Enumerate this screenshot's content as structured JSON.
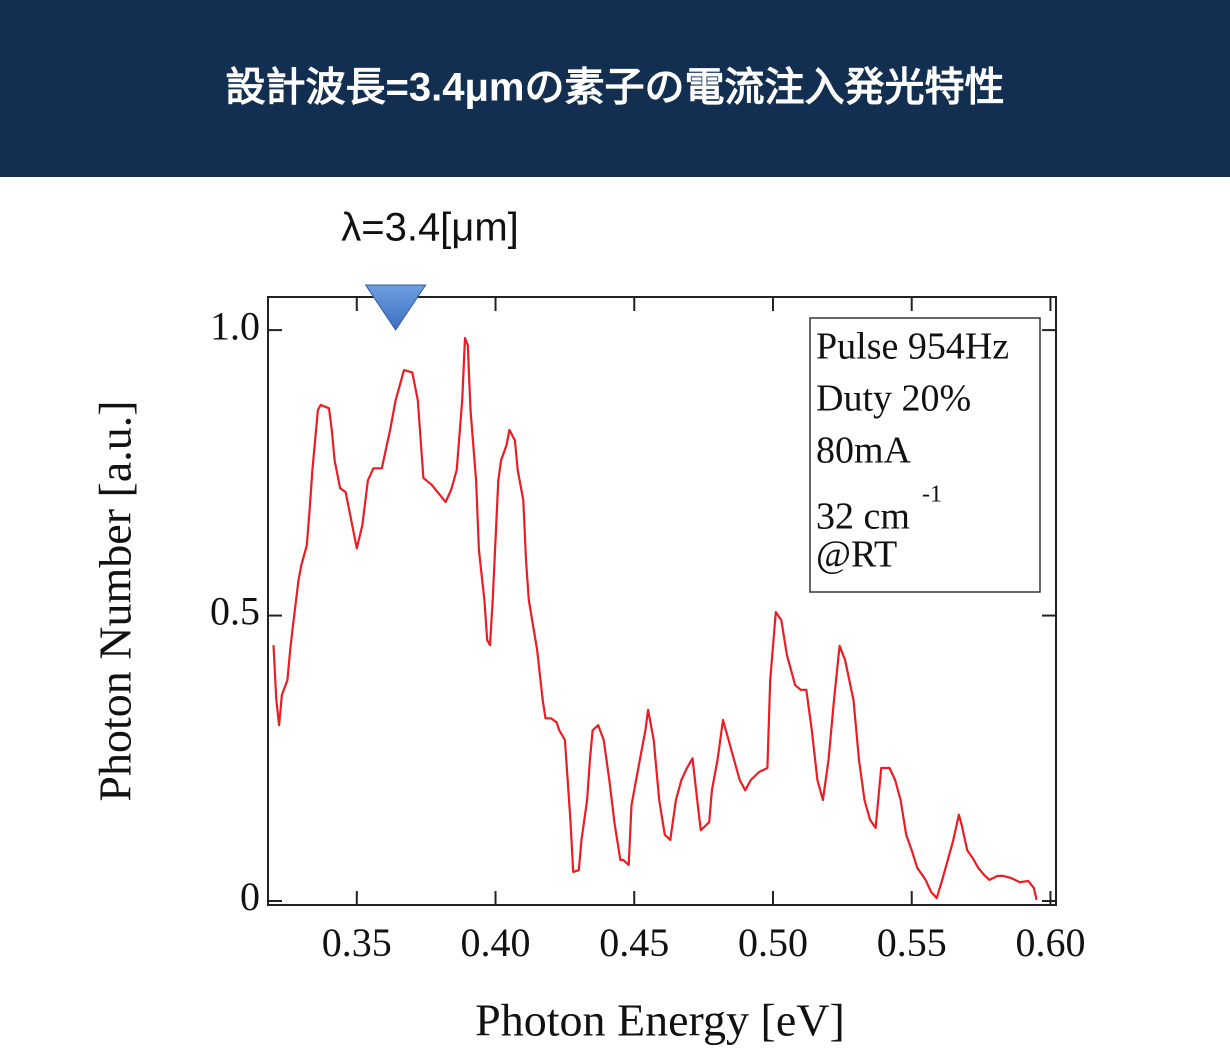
{
  "title": "設計波長=3.4μmの素子の電流注入発光特性",
  "chart_data": {
    "type": "line",
    "annotation": {
      "text": "λ=3.4[μm]",
      "marker_x": 0.364
    },
    "xlabel": "Photon Energy [eV]",
    "ylabel": "Photon Number [a.u.]",
    "box_lines": [
      {
        "text": "Pulse 954Hz"
      },
      {
        "text": "Duty 20%"
      },
      {
        "text": "80mA"
      },
      {
        "text": "32 cm",
        "sup": "-1"
      },
      {
        "text": "@RT"
      }
    ],
    "xlim": [
      0.318,
      0.602
    ],
    "ylim": [
      -0.007,
      1.058
    ],
    "xticks": [
      0.35,
      {
        "value": 0.4,
        "label": "0.40"
      },
      0.45,
      {
        "value": 0.5,
        "label": "0.50"
      },
      0.55,
      {
        "value": 0.6,
        "label": "0.60"
      }
    ],
    "yticks": [
      0,
      0.5,
      {
        "value": 1,
        "label": "1.0"
      }
    ],
    "grid": false,
    "series": [
      {
        "color": "#ec1c24",
        "x": [
          0.32,
          0.321,
          0.322,
          0.323,
          0.325,
          0.326,
          0.327,
          0.329,
          0.33,
          0.332,
          0.333,
          0.334,
          0.336,
          0.337,
          0.34,
          0.341,
          0.342,
          0.344,
          0.346,
          0.348,
          0.35,
          0.352,
          0.354,
          0.356,
          0.359,
          0.362,
          0.364,
          0.367,
          0.37,
          0.372,
          0.374,
          0.377,
          0.38,
          0.382,
          0.384,
          0.386,
          0.388,
          0.389,
          0.39,
          0.391,
          0.393,
          0.394,
          0.396,
          0.397,
          0.398,
          0.399,
          0.401,
          0.402,
          0.404,
          0.405,
          0.407,
          0.408,
          0.41,
          0.411,
          0.412,
          0.415,
          0.417,
          0.418,
          0.42,
          0.422,
          0.423,
          0.425,
          0.427,
          0.428,
          0.43,
          0.431,
          0.433,
          0.434,
          0.435,
          0.437,
          0.439,
          0.441,
          0.443,
          0.445,
          0.446,
          0.448,
          0.449,
          0.452,
          0.454,
          0.455,
          0.457,
          0.459,
          0.461,
          0.463,
          0.465,
          0.467,
          0.469,
          0.471,
          0.473,
          0.474,
          0.477,
          0.478,
          0.48,
          0.482,
          0.484,
          0.486,
          0.488,
          0.49,
          0.492,
          0.495,
          0.498,
          0.499,
          0.501,
          0.503,
          0.505,
          0.508,
          0.51,
          0.512,
          0.514,
          0.516,
          0.518,
          0.52,
          0.522,
          0.524,
          0.526,
          0.529,
          0.531,
          0.533,
          0.535,
          0.537,
          0.539,
          0.542,
          0.544,
          0.546,
          0.548,
          0.55,
          0.552,
          0.555,
          0.557,
          0.559,
          0.561,
          0.563,
          0.565,
          0.567,
          0.568,
          0.57,
          0.572,
          0.574,
          0.576,
          0.578,
          0.581,
          0.583,
          0.586,
          0.589,
          0.592,
          0.594,
          0.595
        ],
        "values": [
          0.448,
          0.352,
          0.308,
          0.361,
          0.387,
          0.44,
          0.483,
          0.562,
          0.588,
          0.623,
          0.685,
          0.755,
          0.86,
          0.869,
          0.863,
          0.825,
          0.772,
          0.723,
          0.716,
          0.667,
          0.618,
          0.658,
          0.737,
          0.758,
          0.758,
          0.825,
          0.877,
          0.93,
          0.926,
          0.877,
          0.741,
          0.729,
          0.711,
          0.699,
          0.72,
          0.755,
          0.877,
          0.986,
          0.974,
          0.86,
          0.737,
          0.615,
          0.527,
          0.457,
          0.448,
          0.527,
          0.737,
          0.772,
          0.799,
          0.825,
          0.807,
          0.755,
          0.702,
          0.597,
          0.527,
          0.44,
          0.352,
          0.32,
          0.32,
          0.313,
          0.299,
          0.282,
          0.142,
          0.051,
          0.054,
          0.107,
          0.177,
          0.247,
          0.299,
          0.308,
          0.282,
          0.212,
          0.133,
          0.072,
          0.072,
          0.063,
          0.168,
          0.247,
          0.299,
          0.335,
          0.282,
          0.177,
          0.116,
          0.107,
          0.177,
          0.212,
          0.233,
          0.25,
          0.163,
          0.124,
          0.138,
          0.194,
          0.247,
          0.317,
          0.282,
          0.247,
          0.212,
          0.194,
          0.212,
          0.226,
          0.233,
          0.387,
          0.506,
          0.492,
          0.431,
          0.378,
          0.37,
          0.37,
          0.299,
          0.212,
          0.177,
          0.247,
          0.352,
          0.447,
          0.422,
          0.352,
          0.247,
          0.177,
          0.142,
          0.128,
          0.233,
          0.233,
          0.212,
          0.177,
          0.116,
          0.089,
          0.058,
          0.037,
          0.016,
          0.005,
          0.037,
          0.072,
          0.107,
          0.151,
          0.133,
          0.089,
          0.075,
          0.058,
          0.046,
          0.037,
          0.044,
          0.044,
          0.04,
          0.033,
          0.035,
          0.023,
          0.002
        ]
      }
    ]
  }
}
